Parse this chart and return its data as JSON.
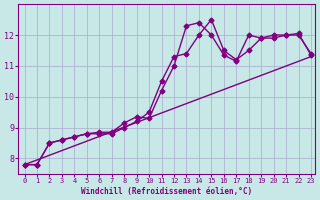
{
  "xlabel": "Windchill (Refroidissement éolien,°C)",
  "ylabel": "",
  "background_color": "#c8e8e8",
  "line_color": "#800080",
  "xlim": [
    0,
    23
  ],
  "ylim": [
    7.5,
    13
  ],
  "xticks": [
    0,
    1,
    2,
    3,
    4,
    5,
    6,
    7,
    8,
    9,
    10,
    11,
    12,
    13,
    14,
    15,
    16,
    17,
    18,
    19,
    20,
    21,
    22,
    23
  ],
  "yticks": [
    8,
    9,
    10,
    11,
    12
  ],
  "grid_color": "#aaaacc",
  "series1_x": [
    0,
    1,
    2,
    3,
    4,
    5,
    6,
    7,
    8,
    9,
    10,
    11,
    12,
    13,
    14,
    15,
    16,
    17,
    18,
    19,
    20,
    21,
    22,
    23
  ],
  "series1_y": [
    7.8,
    7.8,
    8.5,
    8.6,
    8.7,
    8.8,
    8.8,
    8.8,
    9.0,
    9.2,
    9.5,
    10.5,
    11.3,
    11.4,
    12.0,
    12.5,
    11.5,
    11.2,
    11.5,
    11.9,
    11.9,
    12.0,
    12.0,
    11.4
  ],
  "series2_x": [
    0,
    1,
    2,
    3,
    4,
    5,
    6,
    7,
    8,
    9,
    10,
    11,
    12,
    13,
    14,
    15,
    16,
    17,
    18,
    19,
    20,
    21,
    22,
    23
  ],
  "series2_y": [
    7.8,
    7.8,
    8.5,
    8.6,
    8.7,
    8.8,
    8.85,
    8.85,
    9.15,
    9.35,
    9.3,
    10.2,
    11.0,
    12.3,
    12.4,
    12.0,
    11.35,
    11.15,
    12.0,
    11.9,
    12.0,
    12.0,
    12.05,
    11.35
  ],
  "series3_x": [
    0,
    23
  ],
  "series3_y": [
    7.8,
    11.3
  ]
}
